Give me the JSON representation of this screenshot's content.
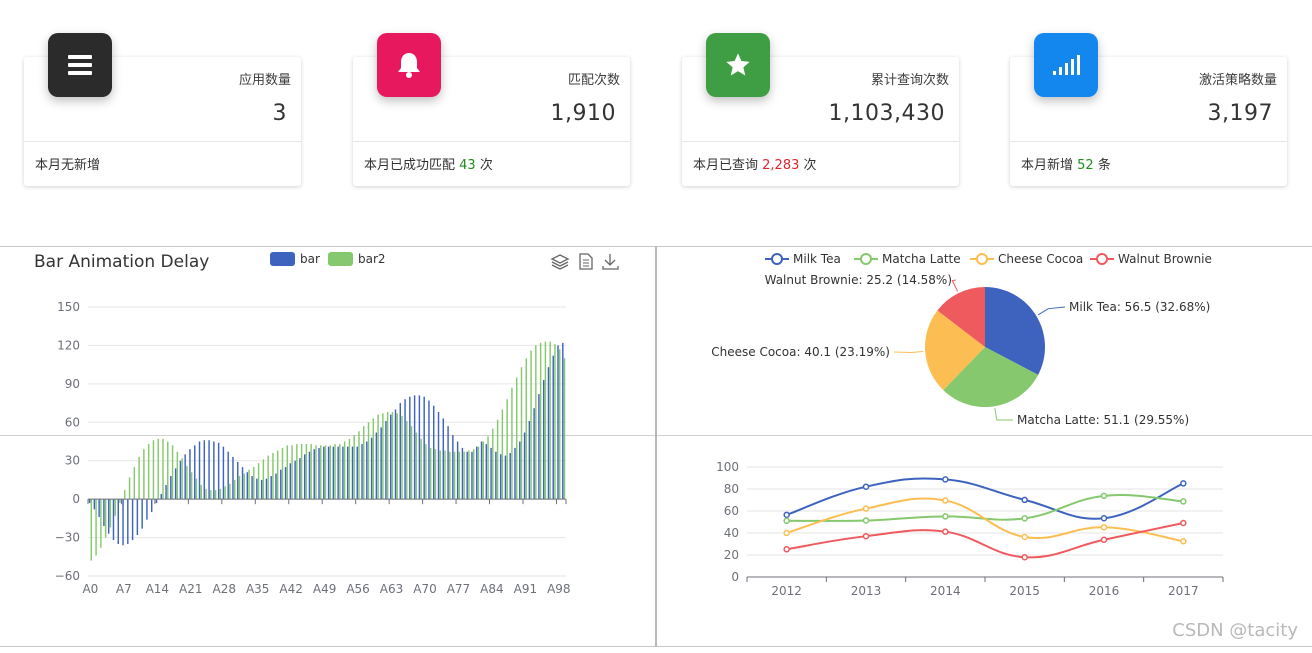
{
  "cards": [
    {
      "id": "apps",
      "label": "应用数量",
      "value": "3",
      "foot_prefix": "本月无新增",
      "foot_value": "",
      "foot_suffix": "",
      "foot_color": "",
      "icon": "menu-icon",
      "icon_color": "#2b2b2b"
    },
    {
      "id": "matches",
      "label": "匹配次数",
      "value": "1,910",
      "foot_prefix": "本月已成功匹配",
      "foot_value": "43",
      "foot_suffix": "次",
      "foot_color": "#1f8e1f",
      "icon": "bell-icon",
      "icon_color": "#e8185e"
    },
    {
      "id": "queries",
      "label": "累计查询次数",
      "value": "1,103,430",
      "foot_prefix": "本月已查询",
      "foot_value": "2,283",
      "foot_suffix": "次",
      "foot_color": "#e0262d",
      "icon": "star-icon",
      "icon_color": "#3f9e44"
    },
    {
      "id": "policies",
      "label": "激活策略数量",
      "value": "3,197",
      "foot_prefix": "本月新增",
      "foot_value": "52",
      "foot_suffix": "条",
      "foot_color": "#1f8e1f",
      "icon": "signal-icon",
      "icon_color": "#1387ee"
    }
  ],
  "colors": {
    "blue": "#3d63bf",
    "green": "#85c86d",
    "yellow": "#fcbe52",
    "red": "#ef5a5f"
  },
  "watermark": "CSDN @tacity",
  "chart_data": [
    {
      "type": "bar",
      "title": "Bar Animation Delay",
      "legend": [
        "bar",
        "bar2"
      ],
      "legend_position": "top",
      "toolbox": [
        "stack-icon",
        "data-view-icon",
        "download-icon"
      ],
      "ylim": [
        -60,
        150
      ],
      "yticks": [
        -60,
        -30,
        0,
        30,
        60,
        90,
        120,
        150
      ],
      "xtick_labels": [
        "A0",
        "A7",
        "A14",
        "A21",
        "A28",
        "A35",
        "A42",
        "A49",
        "A56",
        "A63",
        "A70",
        "A77",
        "A84",
        "A91",
        "A98"
      ],
      "x": [
        "A0",
        "A1",
        "A2",
        "A3",
        "A4",
        "A5",
        "A6",
        "A7",
        "A8",
        "A9",
        "A10",
        "A11",
        "A12",
        "A13",
        "A14",
        "A15",
        "A16",
        "A17",
        "A18",
        "A19",
        "A20",
        "A21",
        "A22",
        "A23",
        "A24",
        "A25",
        "A26",
        "A27",
        "A28",
        "A29",
        "A30",
        "A31",
        "A32",
        "A33",
        "A34",
        "A35",
        "A36",
        "A37",
        "A38",
        "A39",
        "A40",
        "A41",
        "A42",
        "A43",
        "A44",
        "A45",
        "A46",
        "A47",
        "A48",
        "A49",
        "A50",
        "A51",
        "A52",
        "A53",
        "A54",
        "A55",
        "A56",
        "A57",
        "A58",
        "A59",
        "A60",
        "A61",
        "A62",
        "A63",
        "A64",
        "A65",
        "A66",
        "A67",
        "A68",
        "A69",
        "A70",
        "A71",
        "A72",
        "A73",
        "A74",
        "A75",
        "A76",
        "A77",
        "A78",
        "A79",
        "A80",
        "A81",
        "A82",
        "A83",
        "A84",
        "A85",
        "A86",
        "A87",
        "A88",
        "A89",
        "A90",
        "A91",
        "A92",
        "A93",
        "A94",
        "A95",
        "A96",
        "A97",
        "A98",
        "A99"
      ],
      "series": [
        {
          "name": "bar",
          "values": [
            -3,
            -8,
            -14,
            -21,
            -27,
            -32,
            -35,
            -36,
            -35,
            -32,
            -28,
            -23,
            -16,
            -10,
            -3,
            4,
            11,
            18,
            24,
            30,
            35,
            39,
            42,
            45,
            46,
            46,
            45,
            44,
            41,
            37,
            33,
            29,
            25,
            21,
            18,
            16,
            15,
            16,
            18,
            20,
            23,
            25,
            28,
            30,
            32,
            35,
            37,
            39,
            40,
            41,
            41,
            41,
            41,
            41,
            41,
            41,
            41,
            43,
            45,
            48,
            52,
            56,
            61,
            66,
            70,
            75,
            78,
            80,
            81,
            81,
            80,
            77,
            73,
            68,
            63,
            57,
            50,
            45,
            40,
            37,
            37,
            41,
            45,
            43,
            40,
            37,
            35,
            34,
            36,
            40,
            45,
            52,
            61,
            71,
            82,
            93,
            103,
            112,
            120,
            122
          ]
        },
        {
          "name": "bar2",
          "values": [
            -48,
            -44,
            -38,
            -30,
            -22,
            -13,
            -3,
            7,
            17,
            25,
            33,
            39,
            43,
            46,
            47,
            47,
            45,
            42,
            37,
            32,
            26,
            21,
            16,
            11,
            8,
            7,
            7,
            8,
            10,
            12,
            15,
            18,
            20,
            23,
            25,
            28,
            31,
            34,
            36,
            38,
            40,
            42,
            42,
            43,
            43,
            43,
            43,
            42,
            42,
            42,
            42,
            43,
            43,
            45,
            47,
            50,
            53,
            57,
            60,
            63,
            66,
            67,
            68,
            68,
            67,
            65,
            61,
            57,
            52,
            47,
            43,
            40,
            39,
            38,
            38,
            37,
            37,
            37,
            37,
            38,
            39,
            41,
            45,
            49,
            55,
            62,
            70,
            78,
            87,
            95,
            103,
            110,
            116,
            120,
            122,
            123,
            123,
            121,
            117,
            110
          ]
        }
      ]
    },
    {
      "type": "pie",
      "legend": [
        "Milk Tea",
        "Matcha Latte",
        "Cheese Cocoa",
        "Walnut Brownie"
      ],
      "legend_position": "top",
      "slices": [
        {
          "name": "Milk Tea",
          "value": 56.5,
          "percent": 32.68,
          "label": "Milk Tea: 56.5 (32.68%)"
        },
        {
          "name": "Matcha Latte",
          "value": 51.1,
          "percent": 29.55,
          "label": "Matcha Latte: 51.1 (29.55%)"
        },
        {
          "name": "Cheese Cocoa",
          "value": 40.1,
          "percent": 23.19,
          "label": "Cheese Cocoa: 40.1 (23.19%)"
        },
        {
          "name": "Walnut Brownie",
          "value": 25.2,
          "percent": 14.58,
          "label": "Walnut Brownie: 25.2 (14.58%)"
        }
      ]
    },
    {
      "type": "line",
      "smooth": true,
      "categories": [
        "2012",
        "2013",
        "2014",
        "2015",
        "2016",
        "2017"
      ],
      "ylim": [
        0,
        100
      ],
      "yticks": [
        0,
        20,
        40,
        60,
        80,
        100
      ],
      "series": [
        {
          "name": "Milk Tea",
          "values": [
            56.5,
            82.1,
            88.7,
            70.1,
            53.4,
            85.1
          ]
        },
        {
          "name": "Matcha Latte",
          "values": [
            51.1,
            51.4,
            55.1,
            53.3,
            73.8,
            68.7
          ]
        },
        {
          "name": "Cheese Cocoa",
          "values": [
            40.1,
            62.2,
            69.5,
            36.4,
            45.2,
            32.5
          ]
        },
        {
          "name": "Walnut Brownie",
          "values": [
            25.2,
            37.1,
            41.2,
            18,
            33.9,
            49.1
          ]
        }
      ]
    }
  ]
}
